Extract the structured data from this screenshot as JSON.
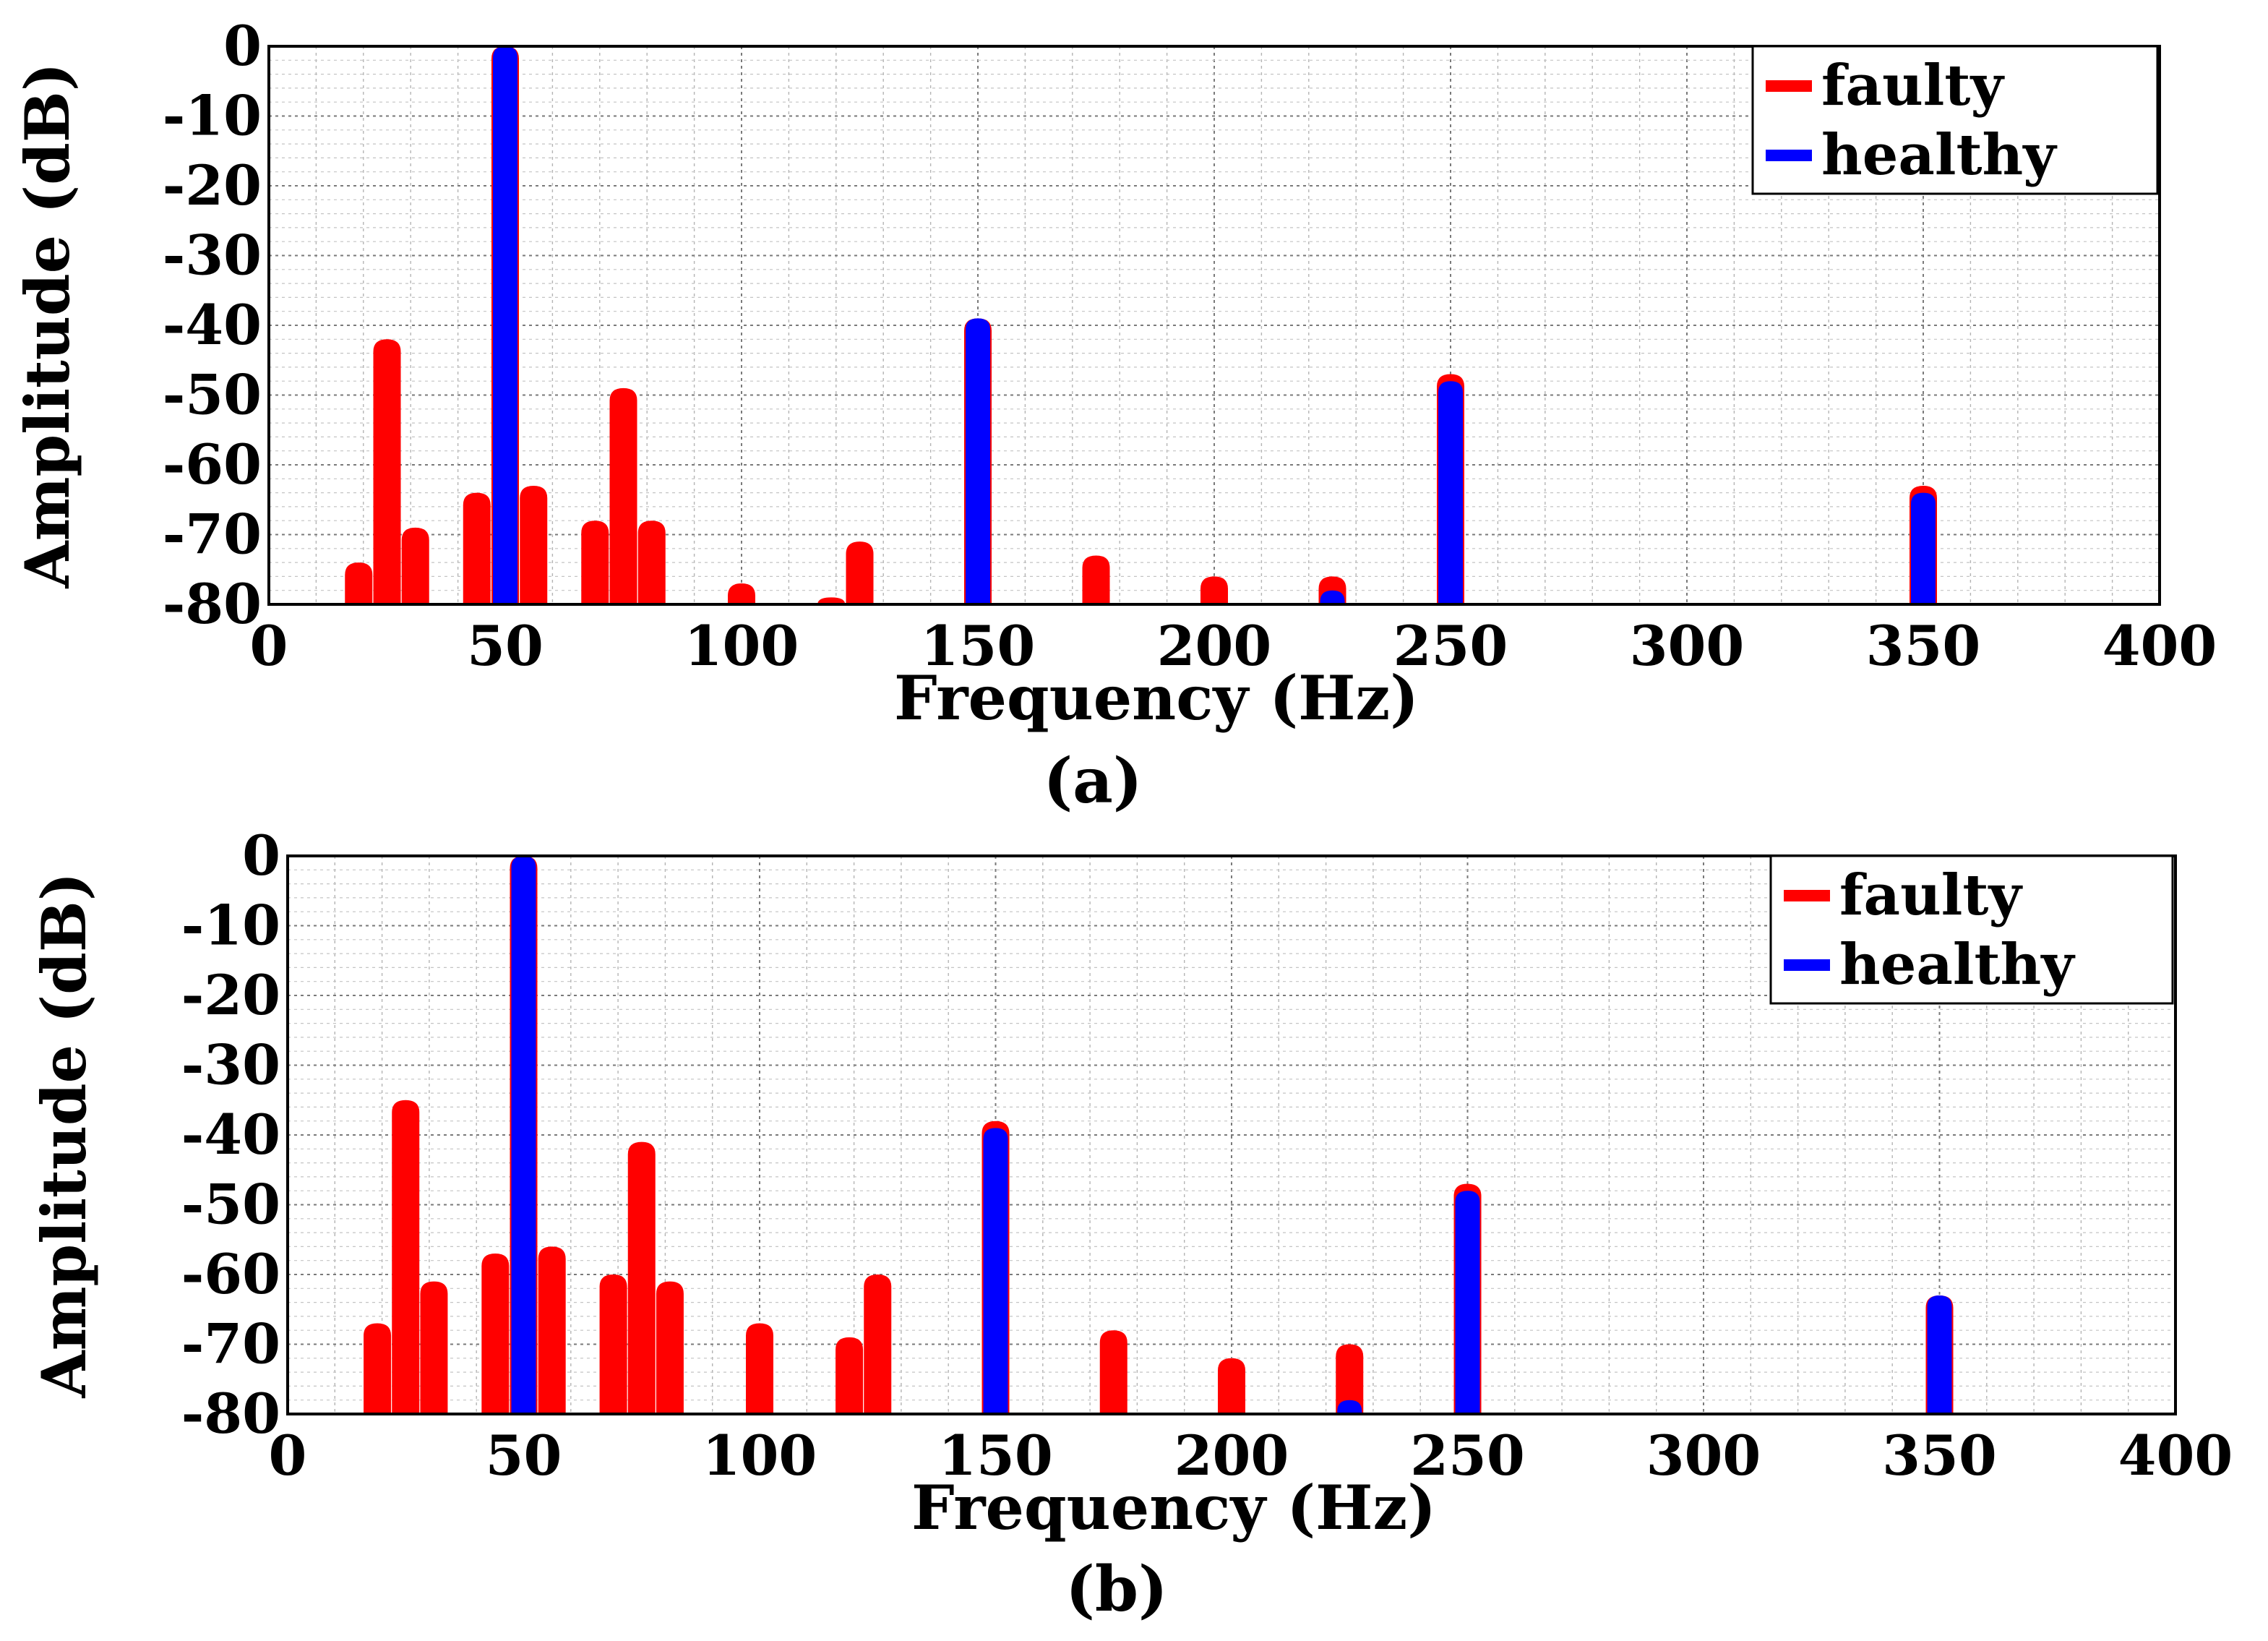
{
  "chart_data": [
    {
      "type": "area",
      "panel_label": "(a)",
      "xlabel": "Frequency (Hz)",
      "ylabel": "Amplitude (dB)",
      "xlim": [
        0,
        400
      ],
      "ylim": [
        -80,
        0
      ],
      "xticks": [
        0,
        50,
        100,
        150,
        200,
        250,
        300,
        350,
        400
      ],
      "yticks": [
        0,
        -10,
        -20,
        -30,
        -40,
        -50,
        -60,
        -70,
        -80
      ],
      "grid": true,
      "legend_position": "top-right",
      "series": [
        {
          "name": "faulty",
          "color": "#ff0000",
          "peaks": [
            {
              "f": 19,
              "db": -74
            },
            {
              "f": 25,
              "db": -42
            },
            {
              "f": 31,
              "db": -69
            },
            {
              "f": 44,
              "db": -64
            },
            {
              "f": 50,
              "db": 0
            },
            {
              "f": 56,
              "db": -63
            },
            {
              "f": 69,
              "db": -68
            },
            {
              "f": 75,
              "db": -49
            },
            {
              "f": 81,
              "db": -68
            },
            {
              "f": 100,
              "db": -77
            },
            {
              "f": 119,
              "db": -79
            },
            {
              "f": 125,
              "db": -71
            },
            {
              "f": 150,
              "db": -39
            },
            {
              "f": 175,
              "db": -73
            },
            {
              "f": 200,
              "db": -76
            },
            {
              "f": 225,
              "db": -76
            },
            {
              "f": 250,
              "db": -47
            },
            {
              "f": 350,
              "db": -63
            }
          ]
        },
        {
          "name": "healthy",
          "color": "#0000ff",
          "peaks": [
            {
              "f": 50,
              "db": 0
            },
            {
              "f": 150,
              "db": -39
            },
            {
              "f": 225,
              "db": -78
            },
            {
              "f": 250,
              "db": -48
            },
            {
              "f": 350,
              "db": -64
            }
          ]
        }
      ]
    },
    {
      "type": "area",
      "panel_label": "(b)",
      "xlabel": "Frequency (Hz)",
      "ylabel": "Amplitude (dB)",
      "xlim": [
        0,
        400
      ],
      "ylim": [
        -80,
        0
      ],
      "xticks": [
        0,
        50,
        100,
        150,
        200,
        250,
        300,
        350,
        400
      ],
      "yticks": [
        0,
        -10,
        -20,
        -30,
        -40,
        -50,
        -60,
        -70,
        -80
      ],
      "grid": true,
      "legend_position": "top-right",
      "series": [
        {
          "name": "faulty",
          "color": "#ff0000",
          "peaks": [
            {
              "f": 19,
              "db": -67
            },
            {
              "f": 25,
              "db": -35
            },
            {
              "f": 31,
              "db": -61
            },
            {
              "f": 44,
              "db": -57
            },
            {
              "f": 50,
              "db": 0
            },
            {
              "f": 56,
              "db": -56
            },
            {
              "f": 69,
              "db": -60
            },
            {
              "f": 75,
              "db": -41
            },
            {
              "f": 81,
              "db": -61
            },
            {
              "f": 100,
              "db": -67
            },
            {
              "f": 119,
              "db": -69
            },
            {
              "f": 125,
              "db": -60
            },
            {
              "f": 150,
              "db": -38
            },
            {
              "f": 175,
              "db": -68
            },
            {
              "f": 200,
              "db": -72
            },
            {
              "f": 225,
              "db": -70
            },
            {
              "f": 250,
              "db": -47
            },
            {
              "f": 350,
              "db": -63
            }
          ]
        },
        {
          "name": "healthy",
          "color": "#0000ff",
          "peaks": [
            {
              "f": 50,
              "db": 0
            },
            {
              "f": 150,
              "db": -39
            },
            {
              "f": 225,
              "db": -78
            },
            {
              "f": 250,
              "db": -48
            },
            {
              "f": 350,
              "db": -63
            }
          ]
        }
      ]
    }
  ]
}
